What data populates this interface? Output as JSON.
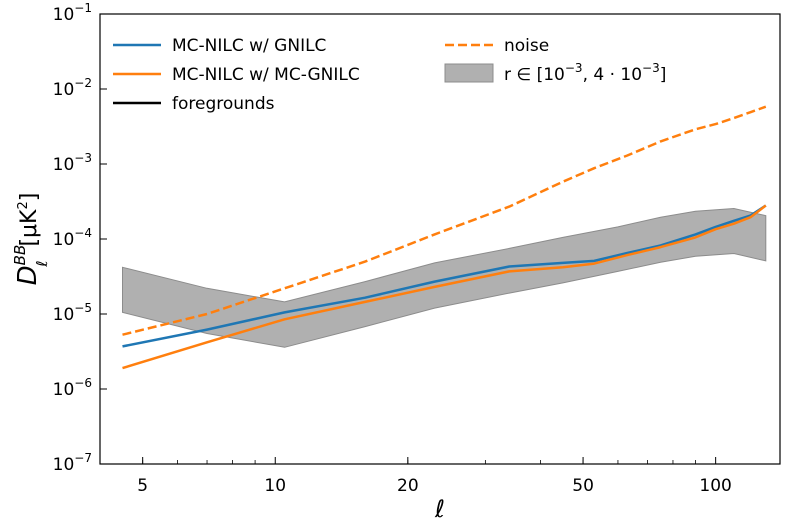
{
  "chart_data": {
    "type": "line",
    "title": "",
    "xlabel": "ℓ",
    "ylabel": {
      "symbol": "D",
      "superscript": "BB",
      "subscript": "ℓ",
      "unit_open": "[μK",
      "unit_power": "2",
      "unit_close": "]"
    },
    "xscale": "log",
    "yscale": "log",
    "xlim": [
      4.0,
      140.0
    ],
    "ylim": [
      1e-07,
      0.1
    ],
    "x_ticks": [
      {
        "value": 5,
        "label": "5"
      },
      {
        "value": 10,
        "label": "10"
      },
      {
        "value": 20,
        "label": "20"
      },
      {
        "value": 50,
        "label": "50"
      },
      {
        "value": 100,
        "label": "100"
      }
    ],
    "y_ticks": [
      {
        "value": 1e-07,
        "base": "10",
        "exp": "−7"
      },
      {
        "value": 1e-06,
        "base": "10",
        "exp": "−6"
      },
      {
        "value": 1e-05,
        "base": "10",
        "exp": "−5"
      },
      {
        "value": 0.0001,
        "base": "10",
        "exp": "−4"
      },
      {
        "value": 0.001,
        "base": "10",
        "exp": "−3"
      },
      {
        "value": 0.01,
        "base": "10",
        "exp": "−2"
      },
      {
        "value": 0.1,
        "base": "10",
        "exp": "−1"
      }
    ],
    "grid": false,
    "legend_position": "top",
    "series": [
      {
        "name": "MC-NILC w/ GNILC",
        "color": "#1f77b4",
        "style": "solid",
        "x": [
          4.5,
          7,
          10.5,
          16,
          23,
          34,
          45,
          53,
          63,
          75,
          90,
          100,
          110,
          120,
          130
        ],
        "y": [
          3.7e-06,
          6.2e-06,
          1.05e-05,
          1.65e-05,
          2.7e-05,
          4.3e-05,
          4.8e-05,
          5.1e-05,
          6.5e-05,
          8.2e-05,
          0.000115,
          0.000145,
          0.000175,
          0.000205,
          0.00028
        ]
      },
      {
        "name": "MC-NILC w/ MC-GNILC",
        "color": "#ff7f0e",
        "style": "solid",
        "x": [
          4.5,
          7,
          10.5,
          16,
          23,
          34,
          45,
          53,
          63,
          75,
          90,
          100,
          110,
          120,
          130
        ],
        "y": [
          1.9e-06,
          4.2e-06,
          8.5e-06,
          1.45e-05,
          2.3e-05,
          3.7e-05,
          4.2e-05,
          4.7e-05,
          6.1e-05,
          7.8e-05,
          0.000105,
          0.000135,
          0.00016,
          0.000195,
          0.00028
        ]
      },
      {
        "name": "foregrounds",
        "color": "#000000",
        "style": "solid",
        "x": [],
        "y": []
      },
      {
        "name": "noise",
        "color": "#ff7f0e",
        "style": "dashed",
        "x": [
          4.5,
          7,
          10.5,
          16,
          23,
          34,
          45,
          53,
          63,
          75,
          90,
          100,
          110,
          120,
          130
        ],
        "y": [
          5.3e-06,
          1e-05,
          2.2e-05,
          5e-05,
          0.000115,
          0.00027,
          0.00058,
          0.00088,
          0.0013,
          0.002,
          0.0029,
          0.0034,
          0.0041,
          0.0049,
          0.0058
        ]
      }
    ],
    "band": {
      "name": "r ∈ [10⁻³, 4·10⁻³]",
      "legend_label": "r ∈ [10",
      "legend_exp1": "−3",
      "legend_mid": ", 4 · 10",
      "legend_exp2": "−3",
      "legend_close": "]",
      "color": "#b0b0b0",
      "edge_color": "#8c8c8c",
      "x": [
        4.5,
        7,
        10.5,
        16,
        23,
        34,
        45,
        60,
        75,
        90,
        110,
        130
      ],
      "upper": [
        4.2e-05,
        2.2e-05,
        1.45e-05,
        2.7e-05,
        4.8e-05,
        7.5e-05,
        0.000105,
        0.000145,
        0.000195,
        0.000235,
        0.000255,
        0.000205
      ],
      "lower": [
        1.05e-05,
        5.5e-06,
        3.6e-06,
        6.8e-06,
        1.2e-05,
        1.9e-05,
        2.6e-05,
        3.7e-05,
        4.9e-05,
        5.9e-05,
        6.4e-05,
        5.1e-05
      ]
    }
  }
}
